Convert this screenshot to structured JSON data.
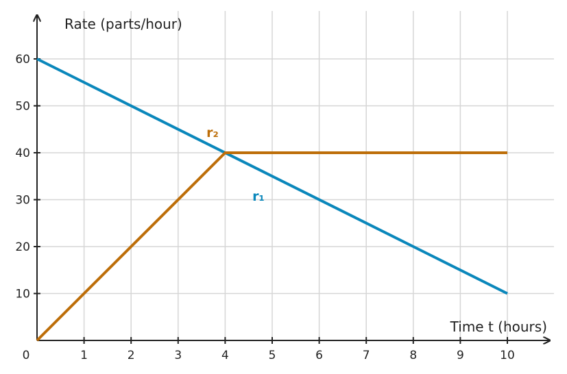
{
  "chart_data": {
    "type": "line",
    "title": "",
    "xlabel": "Time t (hours)",
    "ylabel": "Rate (parts/hour)",
    "xlim": [
      0,
      10
    ],
    "ylim": [
      0,
      60
    ],
    "x_ticks": [
      0,
      1,
      2,
      3,
      4,
      5,
      6,
      7,
      8,
      9,
      10
    ],
    "y_ticks": [
      10,
      20,
      30,
      40,
      50,
      60
    ],
    "origin_label": "0",
    "grid": true,
    "series": [
      {
        "name": "r₁",
        "color": "#0a87bb",
        "points": [
          [
            0,
            60
          ],
          [
            10,
            10
          ]
        ]
      },
      {
        "name": "r₂",
        "color": "#bd6e09",
        "points": [
          [
            0,
            0
          ],
          [
            4,
            40
          ],
          [
            10,
            40
          ]
        ]
      }
    ]
  }
}
